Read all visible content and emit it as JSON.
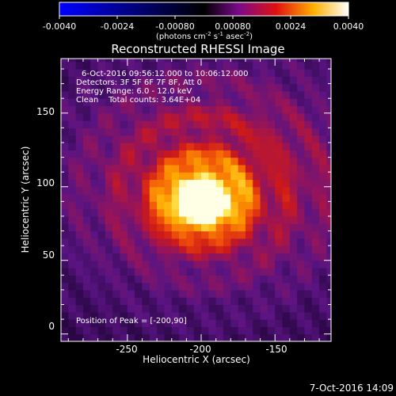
{
  "colorbar": {
    "tick_labels": [
      "-0.0040",
      "-0.0024",
      "-0.00080",
      "0.00080",
      "0.0024",
      "0.0040"
    ],
    "units_main": "(photons cm",
    "units_sup1": "-2",
    "units_mid": " s",
    "units_sup2": "-1",
    "units_mid2": " asec",
    "units_sup3": "-2",
    "units_end": ")",
    "colors": [
      "#0000ff",
      "#000000",
      "#800080",
      "#ff0000",
      "#ffff00",
      "#ffffff"
    ]
  },
  "chart_data": {
    "type": "heatmap",
    "title": "Reconstructed RHESSI Image",
    "xlabel": "Heliocentric X (arcsec)",
    "ylabel": "Heliocentric Y (arcsec)",
    "xlim": [
      -295,
      -112
    ],
    "ylim": [
      -5,
      187
    ],
    "x_ticks": [
      -250,
      -200,
      -150
    ],
    "y_ticks": [
      0,
      50,
      100,
      150
    ],
    "clim": [
      -0.004,
      0.004
    ],
    "peak": [
      -200,
      90
    ],
    "annotations": [
      "6-Oct-2016 09:56:12.000 to 10:06:12.000",
      "Detectors: 3F 5F 6F 7F 8F, Att 0",
      "Energy Range: 6.0 - 12.0 keV",
      "Clean    Total counts: 3.64E+04"
    ],
    "peak_label": "Position of Peak = [-200,90]"
  },
  "footer": {
    "timestamp": "7-Oct-2016 14:09"
  }
}
